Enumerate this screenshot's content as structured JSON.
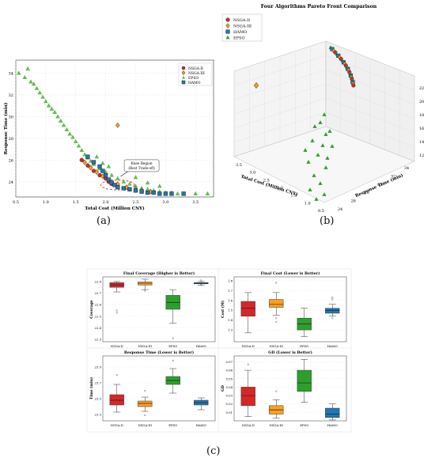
{
  "labels": {
    "a": "(a)",
    "b": "(b)",
    "c": "(c)"
  },
  "colors": {
    "nsga2": "#d62728",
    "nsga3": "#ff9f1c",
    "epso": "#2ca02c",
    "hamo": "#1f77b4",
    "knee": "#e31a1c"
  },
  "chart_data": [
    {
      "type": "scatter",
      "panel": "a",
      "title": "",
      "xlabel": "Total Cost (Million CNY)",
      "ylabel": "Response Time (min)",
      "xlim": [
        0.5,
        3.8
      ],
      "ylim": [
        22.6,
        35.2
      ],
      "xticks": [
        "0.5",
        "1.0",
        "1.5",
        "2.0",
        "2.5",
        "3.0",
        "3.5"
      ],
      "yticks": [
        "24",
        "26",
        "28",
        "30",
        "32",
        "34"
      ],
      "grid": true,
      "legend": "top-right",
      "annotation": {
        "text_lines": [
          "Knee Region",
          "(Best Trade-off)"
        ],
        "x": 2.6,
        "y": 25.3,
        "arrow_to": [
          2.25,
          24.5
        ],
        "ellipse": {
          "cx": 2.2,
          "cy": 23.7,
          "rx": 0.28,
          "ry": 0.45
        }
      },
      "series": [
        {
          "name": "NSGA-II",
          "marker": "circle",
          "color": "#d62728",
          "x": [
            1.6,
            1.7,
            1.8,
            1.9,
            2.0,
            2.05,
            2.1,
            2.2,
            2.3,
            2.4,
            2.5,
            2.6
          ],
          "y": [
            26.0,
            25.5,
            25.0,
            24.6,
            24.3,
            24.0,
            23.8,
            23.6,
            23.4,
            23.3,
            23.2,
            23.1
          ]
        },
        {
          "name": "NSGA-III",
          "marker": "diamond",
          "color": "#ff9f1c",
          "x": [
            1.65,
            1.75,
            1.85,
            1.95,
            2.1,
            2.2,
            2.35,
            2.5,
            2.6,
            2.75,
            2.2
          ],
          "y": [
            25.8,
            25.3,
            24.9,
            24.5,
            24.0,
            23.8,
            23.5,
            23.3,
            23.2,
            23.1,
            29.2
          ]
        },
        {
          "name": "EPSO",
          "marker": "triangle",
          "color": "#66bb55",
          "x": [
            0.55,
            0.65,
            0.7,
            0.75,
            0.8,
            0.85,
            0.9,
            0.95,
            1.0,
            1.05,
            1.1,
            1.15,
            1.2,
            1.25,
            1.3,
            1.35,
            1.4,
            1.45,
            1.5,
            1.55,
            1.6,
            1.65,
            1.7,
            1.75,
            1.8,
            1.9,
            2.0,
            2.1,
            2.2,
            2.3,
            2.4,
            2.5,
            2.6,
            2.7,
            2.8,
            2.9,
            3.0,
            3.1,
            3.2,
            3.3,
            3.5,
            3.7,
            2.5,
            2.7,
            2.9,
            1.85,
            1.95,
            2.05
          ],
          "y": [
            34.0,
            33.6,
            34.4,
            33.2,
            33.0,
            32.6,
            32.2,
            31.8,
            31.4,
            31.0,
            30.7,
            30.4,
            30.0,
            29.6,
            29.2,
            28.8,
            28.4,
            28.1,
            27.7,
            27.3,
            26.9,
            26.5,
            26.2,
            25.9,
            25.6,
            25.2,
            24.9,
            24.6,
            24.3,
            24.0,
            23.8,
            23.6,
            23.4,
            23.3,
            23.2,
            23.1,
            23.0,
            23.0,
            22.9,
            22.9,
            22.9,
            22.9,
            24.4,
            23.9,
            23.6,
            26.3,
            25.7,
            25.4
          ]
        },
        {
          "name": "HAMO",
          "marker": "square",
          "color": "#1f77b4",
          "x": [
            1.7,
            1.8,
            1.9,
            1.95,
            2.0,
            2.05,
            2.1,
            2.15,
            2.2,
            2.3,
            2.4,
            2.5,
            2.6,
            2.7,
            2.8,
            2.9,
            3.0,
            3.1,
            3.3
          ],
          "y": [
            26.3,
            25.8,
            25.4,
            25.0,
            24.6,
            24.2,
            23.9,
            23.7,
            23.5,
            23.4,
            23.3,
            23.2,
            23.1,
            23.0,
            23.0,
            22.9,
            22.9,
            22.9,
            22.9
          ]
        }
      ]
    },
    {
      "type": "scatter",
      "panel": "b",
      "title": "Four Algorithms Pareto Front Comparison",
      "xlabel": "Total Cost (Million CNY)",
      "ylabel": "Response Time (min)",
      "zlabel": "",
      "xticks": [
        "0.5",
        "1.0",
        "1.5",
        "2.0",
        "2.5",
        "3.0",
        "3.5"
      ],
      "yticks": [
        "24",
        "26",
        "28",
        "30",
        "32",
        "34"
      ],
      "zticks": [
        "12",
        "14",
        "16",
        "18",
        "20",
        "22"
      ],
      "legend": "top-left",
      "series": [
        {
          "name": "NSGA-II",
          "marker": "circle",
          "color": "#d62728"
        },
        {
          "name": "NSGA-III",
          "marker": "diamond",
          "color": "#ff9f1c"
        },
        {
          "name": "HAMO",
          "marker": "square",
          "color": "#1f77b4"
        },
        {
          "name": "EPSO",
          "marker": "triangle",
          "color": "#2ca02c"
        }
      ]
    },
    {
      "type": "box",
      "panel": "c1",
      "title": "Final Coverage (Higher is Better)",
      "ylabel": "Coverage",
      "categories": [
        "NSGA-II",
        "NSGA-III",
        "EPSO",
        "HAMO"
      ],
      "yticks": [
        "22.3",
        "22.4",
        "22.5",
        "22.6",
        "22.7",
        "22.8"
      ],
      "ylim": [
        22.28,
        22.84
      ],
      "boxes": [
        {
          "min": 22.71,
          "q1": 22.75,
          "median": 22.77,
          "q3": 22.79,
          "max": 22.8,
          "outliers": [
            22.55,
            22.53
          ]
        },
        {
          "min": 22.73,
          "q1": 22.77,
          "median": 22.785,
          "q3": 22.795,
          "max": 22.82,
          "outliers": [
            22.72
          ]
        },
        {
          "min": 22.44,
          "q1": 22.56,
          "median": 22.62,
          "q3": 22.68,
          "max": 22.73,
          "outliers": [
            22.31
          ]
        },
        {
          "min": 22.77,
          "q1": 22.78,
          "median": 22.785,
          "q3": 22.79,
          "max": 22.8,
          "outliers": [
            22.81,
            22.77
          ]
        }
      ]
    },
    {
      "type": "box",
      "panel": "c2",
      "title": "Final Cost (Lower is Better)",
      "ylabel": "Cost (M)",
      "categories": [
        "NSGA-II",
        "NSGA-III",
        "EPSO",
        "HAMO"
      ],
      "yticks": [
        "1.3",
        "1.4",
        "1.5",
        "1.6",
        "1.7",
        "1.8"
      ],
      "ylim": [
        1.18,
        1.84
      ],
      "boxes": [
        {
          "min": 1.27,
          "q1": 1.44,
          "median": 1.52,
          "q3": 1.59,
          "max": 1.68,
          "outliers": []
        },
        {
          "min": 1.45,
          "q1": 1.53,
          "median": 1.56,
          "q3": 1.61,
          "max": 1.68,
          "outliers": [
            1.78,
            1.42,
            1.38
          ]
        },
        {
          "min": 1.23,
          "q1": 1.3,
          "median": 1.36,
          "q3": 1.42,
          "max": 1.52,
          "outliers": []
        },
        {
          "min": 1.44,
          "q1": 1.47,
          "median": 1.5,
          "q3": 1.52,
          "max": 1.56,
          "outliers": [
            1.63,
            1.61,
            1.42
          ]
        }
      ]
    },
    {
      "type": "box",
      "panel": "c3",
      "title": "Response Time (Lower is Better)",
      "ylabel": "Time (min)",
      "categories": [
        "NSGA-II",
        "NSGA-III",
        "EPSO",
        "HAMO"
      ],
      "yticks": [
        "23.3",
        "23.5",
        "23.7",
        "23.9"
      ],
      "ylim": [
        23.22,
        24.04
      ],
      "boxes": [
        {
          "min": 23.33,
          "q1": 23.42,
          "median": 23.48,
          "q3": 23.55,
          "max": 23.68,
          "outliers": [
            23.8
          ]
        },
        {
          "min": 23.34,
          "q1": 23.4,
          "median": 23.44,
          "q3": 23.47,
          "max": 23.52,
          "outliers": [
            23.6,
            23.29
          ]
        },
        {
          "min": 23.57,
          "q1": 23.68,
          "median": 23.73,
          "q3": 23.78,
          "max": 23.88,
          "outliers": [
            23.98
          ]
        },
        {
          "min": 23.36,
          "q1": 23.42,
          "median": 23.45,
          "q3": 23.48,
          "max": 23.51,
          "outliers": []
        }
      ]
    },
    {
      "type": "box",
      "panel": "c4",
      "title": "GD (Lower is Better)",
      "ylabel": "GD",
      "categories": [
        "NSGA-II",
        "NSGA-III",
        "EPSO",
        "HAMO"
      ],
      "yticks": [
        "0.01",
        "0.02",
        "0.03",
        "0.04",
        "0.05",
        "0.06",
        "0.07"
      ],
      "ylim": [
        0.0,
        0.077
      ],
      "boxes": [
        {
          "min": 0.005,
          "q1": 0.018,
          "median": 0.03,
          "q3": 0.04,
          "max": 0.06,
          "outliers": [
            0.067
          ]
        },
        {
          "min": 0.003,
          "q1": 0.008,
          "median": 0.013,
          "q3": 0.018,
          "max": 0.025,
          "outliers": [
            0.035
          ]
        },
        {
          "min": 0.022,
          "q1": 0.035,
          "median": 0.045,
          "q3": 0.06,
          "max": 0.073,
          "outliers": []
        },
        {
          "min": 0.001,
          "q1": 0.004,
          "median": 0.008,
          "q3": 0.015,
          "max": 0.02,
          "outliers": []
        }
      ]
    }
  ]
}
